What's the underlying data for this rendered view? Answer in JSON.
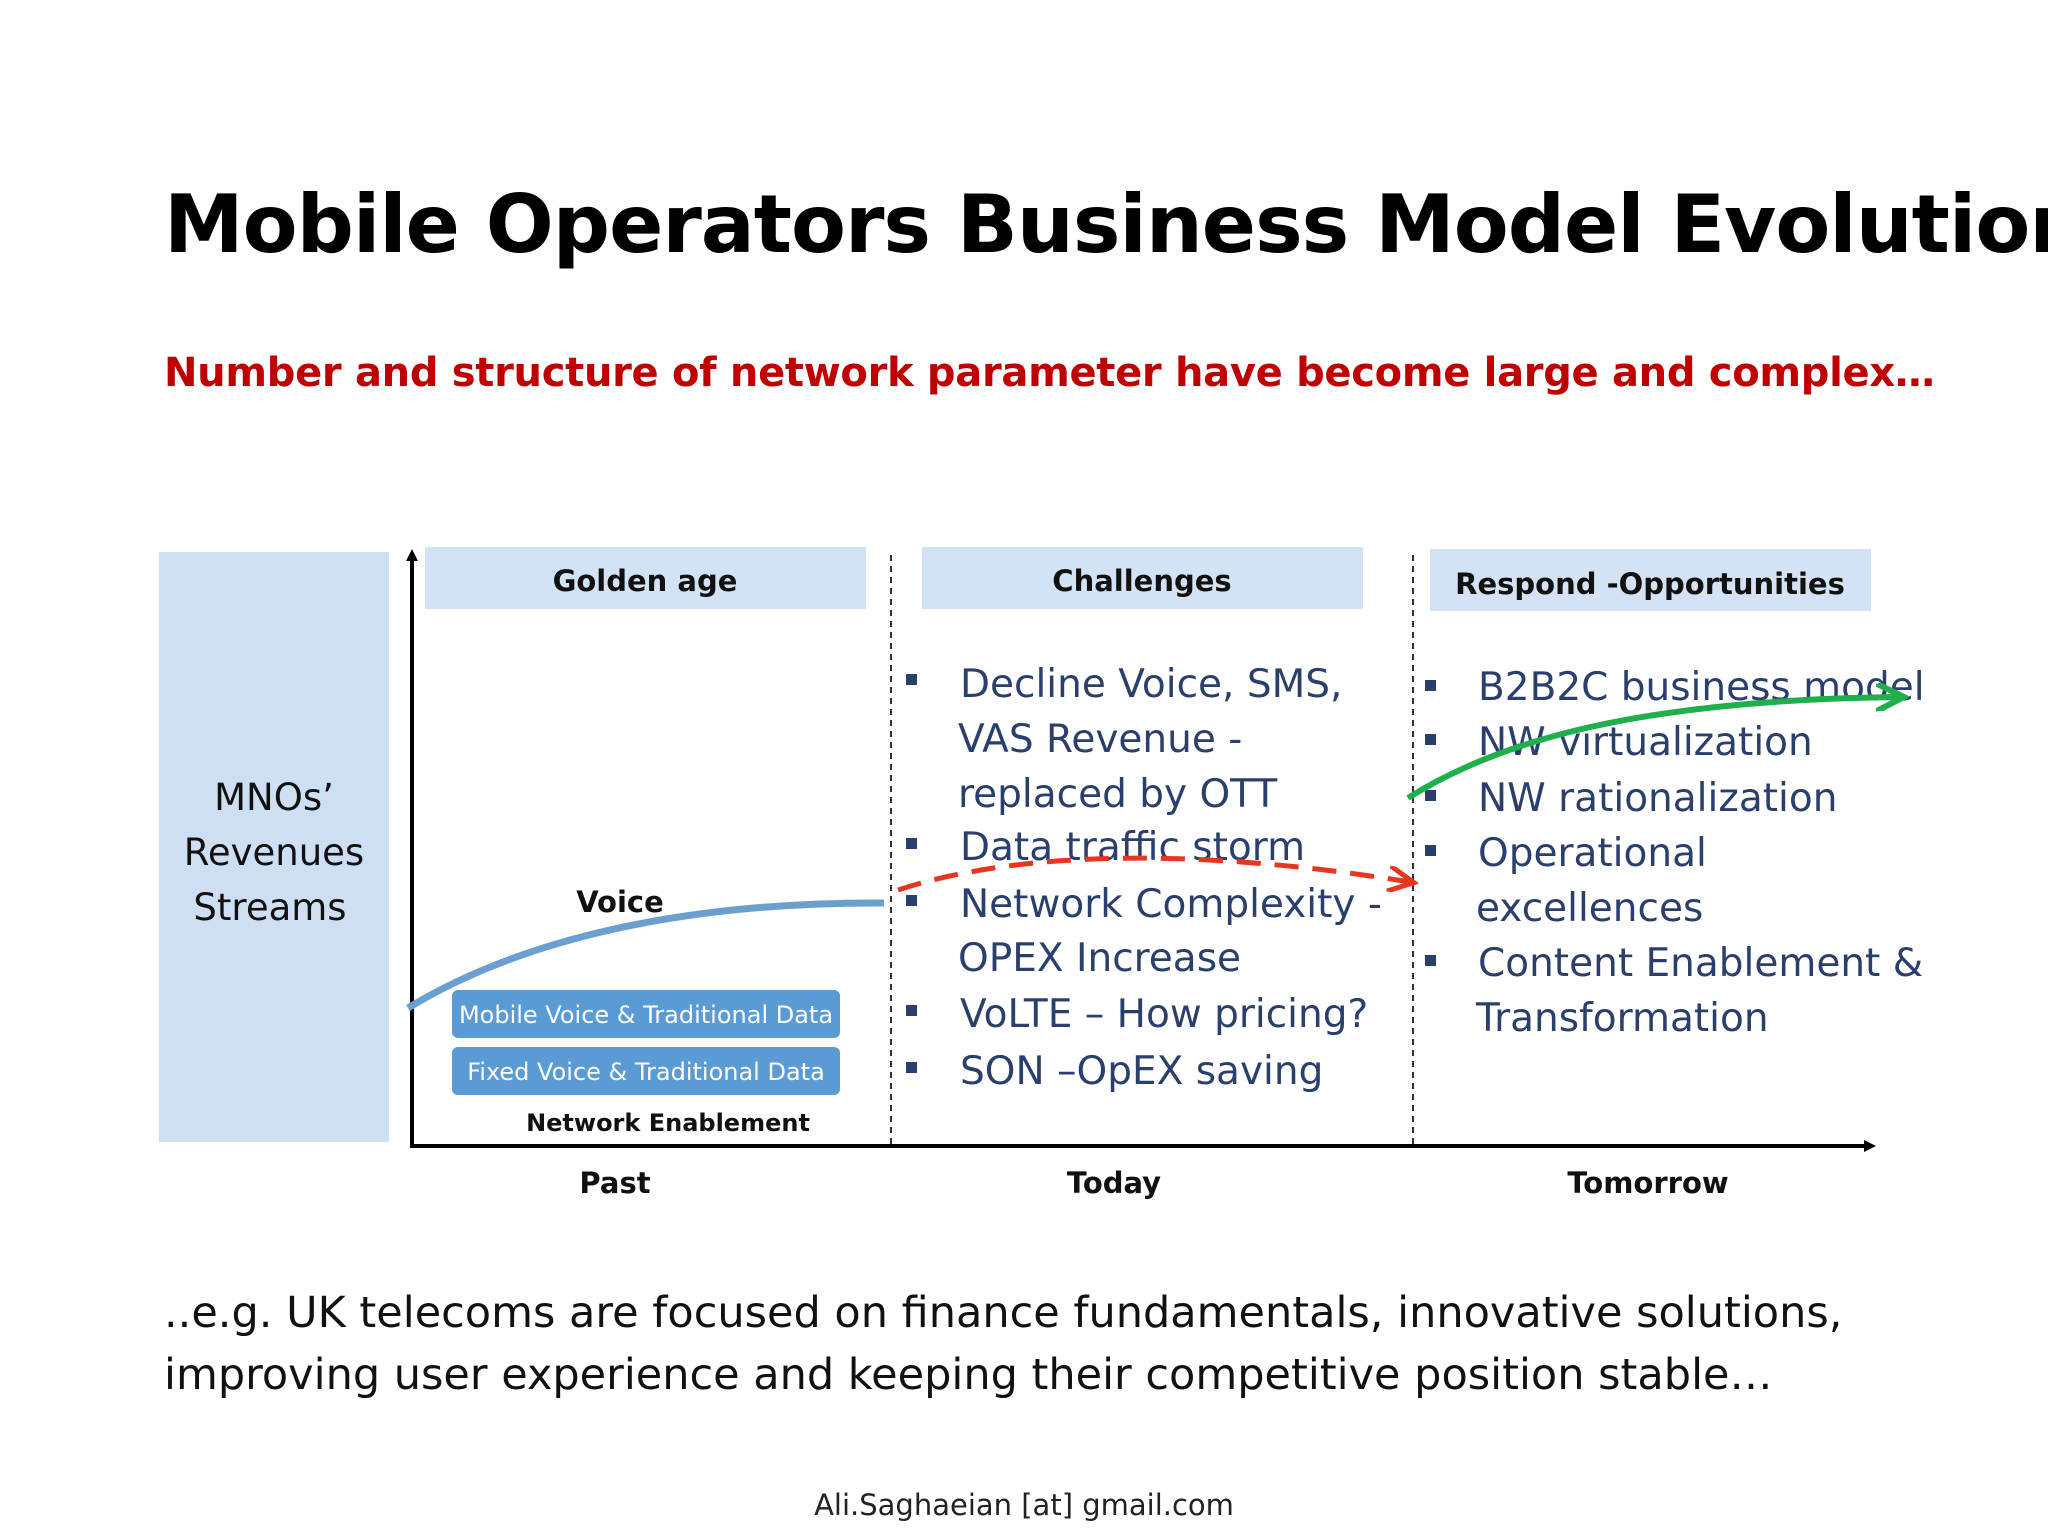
{
  "title": "Mobile Operators Business Model Evolution",
  "subtitle": "Number and structure of network parameter have become large and complex…",
  "revenue_box": {
    "lines": [
      "MNOs’",
      "Revenues",
      "Streams"
    ]
  },
  "phases": [
    {
      "header": "Golden age",
      "axis_label": "Past"
    },
    {
      "header": "Challenges",
      "axis_label": "Today"
    },
    {
      "header": "Respond -Opportunities",
      "axis_label": "Tomorrow"
    }
  ],
  "golden_age": {
    "curve_label": "Voice",
    "pills": [
      "Mobile Voice & Traditional Data",
      "Fixed Voice & Traditional Data"
    ],
    "base_label": "Network Enablement"
  },
  "challenges": [
    "Decline Voice, SMS,",
    "VAS   Revenue -",
    "replaced by OTT",
    "Data traffic storm",
    "Network Complexity  -",
    "OPEX Increase",
    "VoLTE – How pricing?",
    "SON –OpEX saving"
  ],
  "opportunities": [
    "B2B2C  business model",
    "NW virtualization",
    "NW  rationalization",
    "Operational",
    "excellences",
    "Content Enablement &",
    "Transformation"
  ],
  "footnote": {
    "line1": "..e.g. UK telecoms are focused on finance fundamentals, innovative solutions,",
    "line2": "improving user experience and keeping their competitive position stable…"
  },
  "author": "Ali.Saghaeian [at] gmail.com",
  "colors": {
    "header_bg": "#d4e2f5",
    "revenue_bg": "#cfdff3",
    "pill_bg": "#5b9bd5",
    "voice_curve": "#6a9fd0",
    "dashed_arrow": "#e8351e",
    "green_arrow": "#1fb04c",
    "bullet_text": "#2b3f6e",
    "subtitle": "#c00000"
  }
}
